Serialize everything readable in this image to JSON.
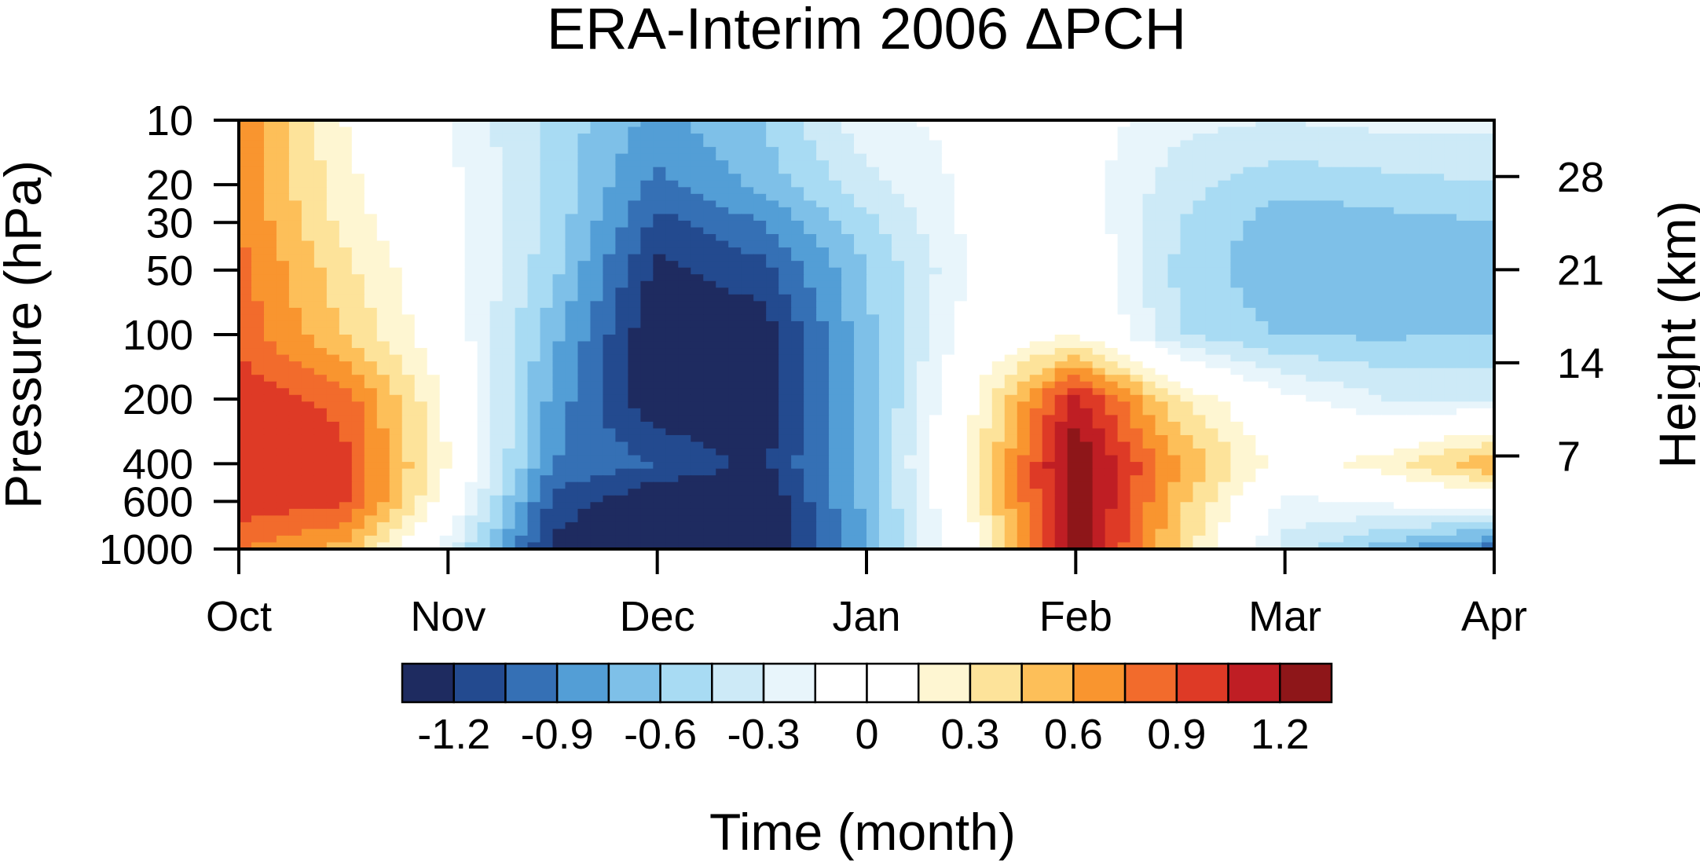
{
  "chart_data": {
    "type": "heatmap",
    "title": "ERA-Interim 2006 ΔPCH",
    "xlabel": "Time (month)",
    "ylabel": "Pressure (hPa)",
    "y2label": "Height (km)",
    "x_ticks": [
      "Oct",
      "Nov",
      "Dec",
      "Jan",
      "Feb",
      "Mar",
      "Apr"
    ],
    "y_ticks": [
      10,
      20,
      30,
      50,
      100,
      200,
      400,
      600,
      1000
    ],
    "y_ticks_labels": [
      "10",
      "20",
      "30",
      "50",
      "100",
      "200",
      "400",
      "600",
      "1000"
    ],
    "y2_ticks": [
      7,
      14,
      21,
      28
    ],
    "y2_tick_labels": [
      "7",
      "14",
      "21",
      "28"
    ],
    "ylim": [
      1000,
      10
    ],
    "y_scale": "log",
    "y2_scale_height_km": 7,
    "colorbar": {
      "levels": [
        -1.4,
        -1.2,
        -1.05,
        -0.9,
        -0.75,
        -0.6,
        -0.45,
        -0.3,
        -0.15,
        0,
        0.15,
        0.3,
        0.45,
        0.6,
        0.75,
        0.9,
        1.05,
        1.2,
        1.4
      ],
      "colors": [
        "#1e2b60",
        "#234a8f",
        "#3570b5",
        "#539ed6",
        "#7ec0e8",
        "#a8dbf3",
        "#cdeaf7",
        "#e8f5fb",
        "#ffffff",
        "#ffffff",
        "#fef6d2",
        "#fde39a",
        "#fdbf59",
        "#f9952f",
        "#f26b2c",
        "#de3a26",
        "#bf1e24",
        "#8e1619"
      ],
      "labels": [
        "-1.2",
        "-0.9",
        "-0.6",
        "-0.3",
        "0",
        "0.3",
        "0.6",
        "0.9",
        "1.2"
      ],
      "label_values": [
        -1.2,
        -0.9,
        -0.6,
        -0.3,
        0,
        0.3,
        0.6,
        0.9,
        1.2
      ]
    },
    "grid": false,
    "x_month_positions": [
      0,
      1,
      2,
      3,
      4,
      5,
      6
    ],
    "time_nodes": [
      0,
      0.5,
      1,
      1.5,
      2,
      2.5,
      3,
      3.5,
      4,
      4.5,
      5,
      5.5,
      6
    ],
    "pressure_nodes": [
      10,
      20,
      30,
      50,
      100,
      200,
      400,
      600,
      1000
    ],
    "values": [
      [
        0.75,
        0.15,
        -0.15,
        -0.5,
        -0.8,
        -0.6,
        -0.2,
        -0.1,
        -0.05,
        -0.25,
        -0.3,
        -0.25,
        -0.25
      ],
      [
        0.7,
        0.2,
        -0.1,
        -0.5,
        -0.95,
        -0.7,
        -0.35,
        -0.1,
        -0.05,
        -0.4,
        -0.55,
        -0.5,
        -0.45
      ],
      [
        0.75,
        0.25,
        -0.1,
        -0.5,
        -1.1,
        -0.9,
        -0.5,
        -0.1,
        0.0,
        -0.45,
        -0.7,
        -0.65,
        -0.6
      ],
      [
        0.8,
        0.35,
        -0.05,
        -0.55,
        -1.25,
        -1.1,
        -0.6,
        -0.15,
        0.05,
        -0.5,
        -0.72,
        -0.7,
        -0.68
      ],
      [
        0.85,
        0.45,
        0.0,
        -0.7,
        -1.35,
        -1.3,
        -0.65,
        -0.05,
        0.15,
        -0.45,
        -0.62,
        -0.62,
        -0.6
      ],
      [
        1.0,
        0.85,
        0.1,
        -0.8,
        -1.35,
        -1.3,
        -0.7,
        0.1,
        1.1,
        0.3,
        -0.1,
        -0.3,
        -0.3
      ],
      [
        1.05,
        0.95,
        0.15,
        -0.9,
        -1.05,
        -1.25,
        -0.65,
        0.2,
        1.35,
        0.6,
        0.05,
        0.25,
        0.6
      ],
      [
        1.0,
        0.95,
        0.05,
        -1.1,
        -1.35,
        -1.35,
        -0.7,
        0.15,
        1.35,
        0.5,
        -0.2,
        -0.1,
        0.0
      ],
      [
        0.75,
        0.55,
        -0.25,
        -1.25,
        -1.4,
        -1.4,
        -0.75,
        0.1,
        1.3,
        0.4,
        -0.35,
        -0.7,
        -1.0
      ]
    ]
  }
}
